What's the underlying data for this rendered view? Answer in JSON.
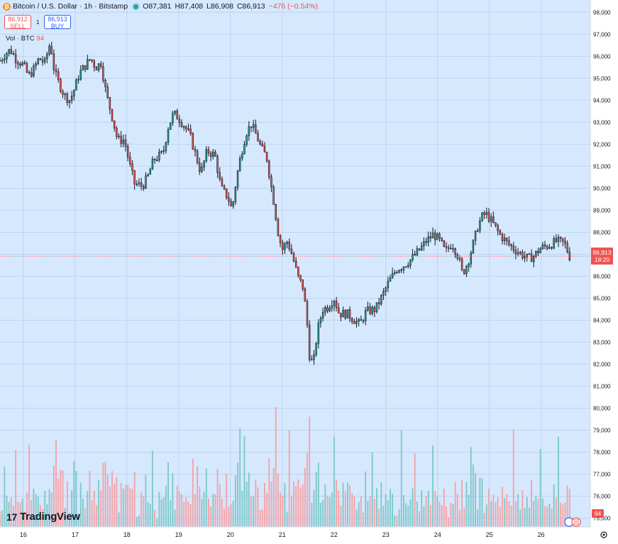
{
  "header": {
    "symbol": "Bitcoin / U.S. Dollar · 1h · Bitstamp",
    "open": "O87,381",
    "high": "H87,408",
    "low": "L86,908",
    "close": "C86,913",
    "change": "−476 (−0.54%)"
  },
  "trade": {
    "sell_price": "86,912",
    "sell_label": "SELL",
    "spread": "1",
    "buy_price": "86,913",
    "buy_label": "BUY"
  },
  "volume_legend": {
    "label": "Vol · BTC",
    "value": "94"
  },
  "last_price": {
    "price": "86,913",
    "countdown": "18:20"
  },
  "logo": "TradingView",
  "colors": {
    "up": "#26a69a",
    "down": "#ef5350",
    "background": "#d6e8fd",
    "wick": "#131722",
    "axis_tag": "#ef5350"
  },
  "chart_data": {
    "type": "candlestick",
    "interval": "1h",
    "y_ticks": [
      98000,
      97000,
      96000,
      95000,
      94000,
      93000,
      92000,
      91000,
      90000,
      89000,
      88000,
      87000,
      86000,
      85000,
      84000,
      83000,
      82000,
      81000,
      80000,
      79000,
      78000,
      77000,
      76000,
      75000
    ],
    "y_tick_labels": [
      "98,000",
      "97,000",
      "96,000",
      "95,000",
      "94,000",
      "93,000",
      "92,000",
      "91,000",
      "90,000",
      "89,000",
      "88,000",
      "87,000",
      "86,000",
      "85,000",
      "84,000",
      "83,000",
      "82,000",
      "81,000",
      "80,000",
      "79,000",
      "78,000",
      "77,000",
      "76,000",
      "75,000"
    ],
    "ylim": [
      74700,
      98300
    ],
    "x_tick_labels": [
      "16",
      "17",
      "18",
      "19",
      "20",
      "21",
      "22",
      "23",
      "24",
      "25",
      "26"
    ],
    "x_tick_positions": [
      0,
      1,
      2,
      3,
      4,
      5,
      6,
      7,
      8,
      9,
      10
    ],
    "xlim": [
      -0.45,
      10.95
    ],
    "price_path": [
      [
        -0.45,
        95800
      ],
      [
        -0.35,
        96100
      ],
      [
        -0.25,
        96300
      ],
      [
        -0.15,
        95900
      ],
      [
        0,
        95600
      ],
      [
        0.1,
        95100
      ],
      [
        0.2,
        95400
      ],
      [
        0.3,
        95900
      ],
      [
        0.42,
        95700
      ],
      [
        0.5,
        96500
      ],
      [
        0.55,
        96200
      ],
      [
        0.6,
        95300
      ],
      [
        0.7,
        94700
      ],
      [
        0.8,
        94200
      ],
      [
        0.9,
        94000
      ],
      [
        1.0,
        94600
      ],
      [
        1.08,
        95200
      ],
      [
        1.2,
        95600
      ],
      [
        1.3,
        95900
      ],
      [
        1.4,
        95500
      ],
      [
        1.5,
        95700
      ],
      [
        1.6,
        94300
      ],
      [
        1.7,
        93400
      ],
      [
        1.82,
        92200
      ],
      [
        1.95,
        92200
      ],
      [
        2.05,
        91100
      ],
      [
        2.15,
        90200
      ],
      [
        2.3,
        90100
      ],
      [
        2.4,
        90500
      ],
      [
        2.52,
        91300
      ],
      [
        2.7,
        91600
      ],
      [
        2.8,
        92800
      ],
      [
        2.9,
        93400
      ],
      [
        3.0,
        93200
      ],
      [
        3.12,
        92800
      ],
      [
        3.22,
        92400
      ],
      [
        3.33,
        91500
      ],
      [
        3.43,
        90700
      ],
      [
        3.55,
        91700
      ],
      [
        3.7,
        91500
      ],
      [
        3.82,
        90000
      ],
      [
        3.95,
        89600
      ],
      [
        4.03,
        89000
      ],
      [
        4.12,
        90500
      ],
      [
        4.2,
        91500
      ],
      [
        4.3,
        92500
      ],
      [
        4.4,
        92900
      ],
      [
        4.5,
        92400
      ],
      [
        4.6,
        91800
      ],
      [
        4.7,
        91400
      ],
      [
        4.78,
        90200
      ],
      [
        4.85,
        89200
      ],
      [
        4.92,
        88000
      ],
      [
        5.0,
        87200
      ],
      [
        5.1,
        87600
      ],
      [
        5.2,
        86900
      ],
      [
        5.3,
        86000
      ],
      [
        5.4,
        85500
      ],
      [
        5.47,
        84200
      ],
      [
        5.53,
        82300
      ],
      [
        5.6,
        82000
      ],
      [
        5.68,
        83500
      ],
      [
        5.78,
        84500
      ],
      [
        5.88,
        84600
      ],
      [
        6.0,
        85000
      ],
      [
        6.1,
        84300
      ],
      [
        6.25,
        84300
      ],
      [
        6.4,
        84000
      ],
      [
        6.5,
        83800
      ],
      [
        6.62,
        84400
      ],
      [
        6.8,
        84500
      ],
      [
        6.95,
        85200
      ],
      [
        7.05,
        85700
      ],
      [
        7.2,
        86300
      ],
      [
        7.35,
        86500
      ],
      [
        7.5,
        86800
      ],
      [
        7.65,
        87200
      ],
      [
        7.78,
        87600
      ],
      [
        7.92,
        87900
      ],
      [
        8.05,
        87600
      ],
      [
        8.15,
        87100
      ],
      [
        8.28,
        87500
      ],
      [
        8.4,
        86900
      ],
      [
        8.48,
        86100
      ],
      [
        8.58,
        86600
      ],
      [
        8.68,
        87400
      ],
      [
        8.78,
        88300
      ],
      [
        8.88,
        88800
      ],
      [
        8.95,
        88800
      ],
      [
        9.07,
        88400
      ],
      [
        9.2,
        87900
      ],
      [
        9.35,
        87500
      ],
      [
        9.5,
        87200
      ],
      [
        9.62,
        87000
      ],
      [
        9.75,
        86800
      ],
      [
        9.85,
        86900
      ],
      [
        10.0,
        87300
      ],
      [
        10.15,
        87400
      ],
      [
        10.3,
        87600
      ],
      [
        10.45,
        87500
      ],
      [
        10.55,
        86900
      ]
    ],
    "volume_max_btc": 560,
    "volume_ticks": []
  }
}
